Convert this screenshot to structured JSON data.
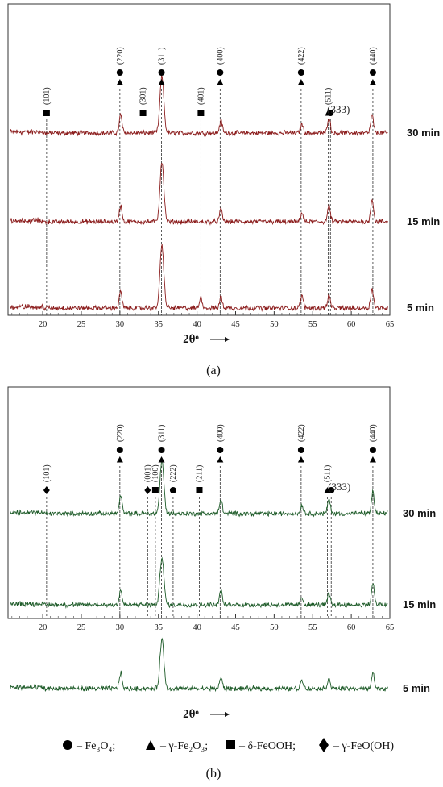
{
  "chart_data": [
    {
      "type": "line",
      "panel_label": "(a)",
      "xlabel": "2θᵒ",
      "xlim": [
        15.5,
        65
      ],
      "x_ticks": [
        20,
        25,
        30,
        35,
        40,
        45,
        50,
        55,
        60,
        65
      ],
      "line_color": "#8b1c1c",
      "series": [
        {
          "name": "30 min",
          "peaks": [
            [
              30.1,
              0.5
            ],
            [
              35.45,
              1.6
            ],
            [
              43.1,
              0.35
            ],
            [
              53.6,
              0.25
            ],
            [
              57.1,
              0.45
            ],
            [
              62.7,
              0.5
            ]
          ]
        },
        {
          "name": "15 min",
          "peaks": [
            [
              30.1,
              0.45
            ],
            [
              35.45,
              1.7
            ],
            [
              43.1,
              0.35
            ],
            [
              53.6,
              0.25
            ],
            [
              57.1,
              0.45
            ],
            [
              62.7,
              0.65
            ]
          ]
        },
        {
          "name": "5 min",
          "peaks": [
            [
              30.1,
              0.45
            ],
            [
              35.45,
              1.75
            ],
            [
              40.5,
              0.3
            ],
            [
              43.1,
              0.3
            ],
            [
              53.6,
              0.35
            ],
            [
              57.1,
              0.35
            ],
            [
              62.7,
              0.55
            ]
          ]
        }
      ],
      "reflections": [
        {
          "x": 20.5,
          "hkl": "(101)",
          "markers": [
            "square"
          ]
        },
        {
          "x": 30.0,
          "hkl": "(220)",
          "markers": [
            "circle",
            "triangle"
          ]
        },
        {
          "x": 33.0,
          "hkl": "(301)",
          "markers": [
            "square"
          ]
        },
        {
          "x": 35.4,
          "hkl": "(311)",
          "markers": [
            "circle",
            "triangle"
          ]
        },
        {
          "x": 40.5,
          "hkl": "(401)",
          "markers": [
            "square"
          ]
        },
        {
          "x": 43.0,
          "hkl": "(400)",
          "markers": [
            "circle",
            "triangle"
          ]
        },
        {
          "x": 53.5,
          "hkl": "(422)",
          "markers": [
            "circle",
            "triangle"
          ]
        },
        {
          "x": 57.0,
          "hkl": "(511)",
          "markers": [
            "triangle"
          ]
        },
        {
          "x": 57.3,
          "hkl": "(333)",
          "markers": [
            "circle"
          ]
        },
        {
          "x": 62.8,
          "hkl": "(440)",
          "markers": [
            "circle",
            "triangle"
          ]
        }
      ]
    },
    {
      "type": "line",
      "panel_label": "(b)",
      "xlabel": "2θᵒ",
      "xlim": [
        15.5,
        65
      ],
      "x_ticks": [
        20,
        25,
        30,
        35,
        40,
        45,
        50,
        55,
        60,
        65
      ],
      "line_color": "#1f5c2a",
      "series": [
        {
          "name": "30 min",
          "peaks": [
            [
              30.1,
              0.5
            ],
            [
              35.45,
              1.5
            ],
            [
              43.1,
              0.4
            ],
            [
              53.6,
              0.25
            ],
            [
              57.1,
              0.4
            ],
            [
              62.8,
              0.6
            ]
          ]
        },
        {
          "name": "15 min",
          "peaks": [
            [
              30.1,
              0.4
            ],
            [
              35.45,
              1.35
            ],
            [
              43.1,
              0.4
            ],
            [
              53.6,
              0.2
            ],
            [
              57.1,
              0.3
            ],
            [
              62.8,
              0.6
            ]
          ]
        },
        {
          "name": "5 min",
          "peaks": [
            [
              30.1,
              0.45
            ],
            [
              35.45,
              1.4
            ],
            [
              43.1,
              0.3
            ],
            [
              53.6,
              0.25
            ],
            [
              57.1,
              0.3
            ],
            [
              62.8,
              0.45
            ]
          ]
        }
      ],
      "reflections": [
        {
          "x": 20.5,
          "hkl": "(101)",
          "markers": [
            "diamond"
          ]
        },
        {
          "x": 30.0,
          "hkl": "(220)",
          "markers": [
            "circle",
            "triangle"
          ]
        },
        {
          "x": 33.6,
          "hkl": "(001)",
          "markers": [
            "diamond"
          ]
        },
        {
          "x": 34.6,
          "hkl": "(100)",
          "markers": [
            "square"
          ]
        },
        {
          "x": 35.4,
          "hkl": "(311)",
          "markers": [
            "circle",
            "triangle"
          ]
        },
        {
          "x": 36.9,
          "hkl": "(222)",
          "markers": [
            "circle"
          ]
        },
        {
          "x": 40.3,
          "hkl": "(211)",
          "markers": [
            "square"
          ]
        },
        {
          "x": 43.0,
          "hkl": "(400)",
          "markers": [
            "circle",
            "triangle"
          ]
        },
        {
          "x": 53.5,
          "hkl": "(422)",
          "markers": [
            "circle",
            "triangle"
          ]
        },
        {
          "x": 56.9,
          "hkl": "(511)",
          "markers": [
            "triangle"
          ]
        },
        {
          "x": 57.4,
          "hkl": "(333)",
          "markers": [
            "circle"
          ]
        },
        {
          "x": 62.8,
          "hkl": "(440)",
          "markers": [
            "circle",
            "triangle"
          ]
        }
      ]
    }
  ],
  "legend": [
    {
      "icon": "circle",
      "label": "– Fe₃O₄;"
    },
    {
      "icon": "triangle",
      "label": "– γ-Fe₂O₃;"
    },
    {
      "icon": "square",
      "label": "– δ-FeOOH;"
    },
    {
      "icon": "diamond",
      "label": "– γ-FeO(OH)"
    }
  ]
}
